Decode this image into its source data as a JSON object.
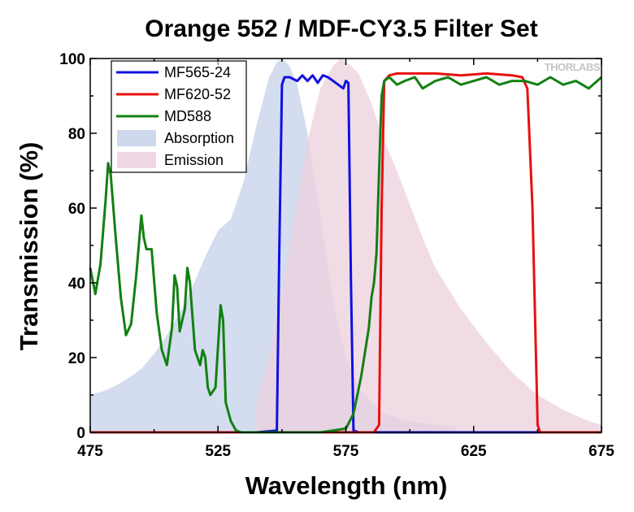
{
  "chart_data": {
    "type": "line",
    "title": "Orange 552 / MDF-CY3.5 Filter Set",
    "xlabel": "Wavelength (nm)",
    "ylabel": "Transmission (%)",
    "xlim": [
      475,
      675
    ],
    "ylim": [
      0,
      100
    ],
    "xticks": [
      "475",
      "525",
      "575",
      "625",
      "675"
    ],
    "yticks": [
      "0",
      "20",
      "40",
      "60",
      "80",
      "100"
    ],
    "grid": false,
    "legend_position": "top-left",
    "logo_text": "THORLABS",
    "series": [
      {
        "name": "MF565-24",
        "style": "line",
        "color": "#1010e0",
        "x": [
          475,
          540,
          548,
          549,
          550,
          551,
          553,
          556,
          558,
          560,
          562,
          564,
          566,
          568,
          570,
          572,
          574,
          575,
          576,
          577,
          578,
          580,
          675
        ],
        "y": [
          0,
          0,
          0.5,
          50,
          93,
          95,
          95,
          94,
          95.5,
          94,
          95.5,
          93.5,
          95.5,
          95,
          94,
          93,
          92,
          94,
          93.5,
          40,
          0.5,
          0,
          0
        ]
      },
      {
        "name": "MF620-52",
        "style": "line",
        "color": "#e81010",
        "x": [
          475,
          586,
          588,
          589,
          590,
          592,
          595,
          600,
          610,
          620,
          630,
          640,
          644,
          646,
          648,
          650,
          651,
          675
        ],
        "y": [
          0,
          0,
          2,
          60,
          94,
          95.5,
          96,
          96,
          96,
          95.5,
          96,
          95.5,
          95,
          92,
          60,
          2,
          0,
          0
        ]
      },
      {
        "name": "MD588",
        "style": "line",
        "color": "#128012",
        "x": [
          475,
          477,
          479,
          481,
          482,
          483,
          485,
          487,
          489,
          491,
          493,
          495,
          496,
          497,
          499,
          501,
          503,
          505,
          507,
          508,
          509,
          510,
          512,
          513,
          514,
          515,
          516,
          518,
          519,
          520,
          521,
          522,
          524,
          526,
          527,
          528,
          530,
          532,
          534,
          540,
          555,
          565,
          575,
          578,
          581,
          584,
          585,
          586,
          587,
          588,
          589,
          590,
          592,
          595,
          598,
          602,
          605,
          610,
          615,
          620,
          625,
          630,
          635,
          640,
          645,
          650,
          655,
          660,
          665,
          670,
          675
        ],
        "y": [
          44,
          37,
          45,
          62,
          72,
          69,
          52,
          36,
          26,
          29,
          42,
          58,
          52,
          49,
          49,
          32,
          22,
          18,
          28,
          42,
          39,
          27,
          33,
          44,
          40,
          31,
          22,
          18,
          22,
          20,
          12,
          10,
          12,
          34,
          30,
          8,
          3,
          0.5,
          0,
          0,
          0,
          0,
          1,
          5,
          15,
          28,
          36,
          40,
          48,
          70,
          90,
          94,
          95,
          93,
          94,
          95,
          92,
          94,
          95,
          93,
          94,
          95,
          93,
          94,
          94,
          93,
          95,
          93,
          94,
          92,
          95
        ]
      },
      {
        "name": "Absorption",
        "style": "area",
        "color": "#c6d2ea",
        "x": [
          475,
          480,
          485,
          490,
          495,
          500,
          505,
          510,
          515,
          520,
          525,
          530,
          535,
          540,
          545,
          548,
          550,
          553,
          556,
          560,
          565,
          570,
          575,
          580,
          585,
          590,
          600,
          610,
          618
        ],
        "y": [
          10,
          11,
          12.5,
          14.5,
          17,
          21,
          26,
          32,
          39,
          47,
          54,
          57,
          67,
          82,
          95,
          99,
          100,
          98,
          93,
          80,
          58,
          35,
          20,
          12,
          8,
          5,
          3,
          2,
          1.5
        ]
      },
      {
        "name": "Emission",
        "style": "area",
        "color": "#ecd0de",
        "x": [
          540,
          545,
          550,
          555,
          560,
          565,
          570,
          573,
          575,
          577,
          580,
          585,
          590,
          595,
          600,
          605,
          610,
          620,
          630,
          640,
          650,
          660,
          670,
          675
        ],
        "y": [
          8,
          20,
          38,
          58,
          78,
          92,
          98,
          100,
          99,
          98,
          96,
          88,
          78,
          70,
          61,
          52,
          44,
          33,
          24,
          16,
          10,
          6,
          3,
          2
        ]
      }
    ]
  }
}
